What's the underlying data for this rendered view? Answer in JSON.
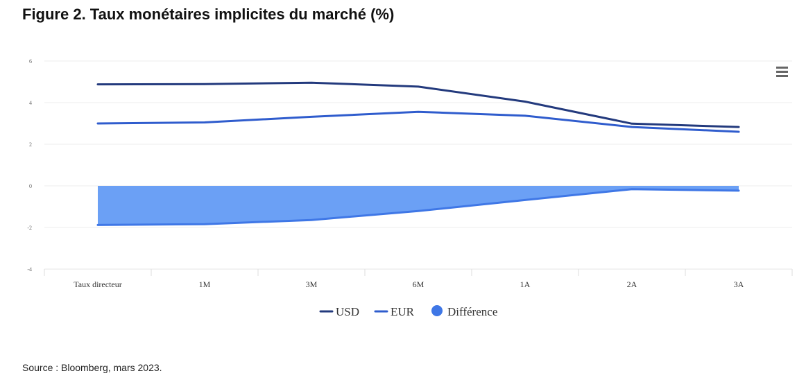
{
  "title": "Figure 2. Taux monétaires implicites du marché (%)",
  "source": "Source : Bloomberg, mars 2023.",
  "menu": {
    "icon": "hamburger-icon"
  },
  "chart_data": {
    "type": "line",
    "title": "Figure 2. Taux monétaires implicites du marché (%)",
    "xlabel": "",
    "ylabel": "",
    "categories": [
      "Taux directeur",
      "1M",
      "3M",
      "6M",
      "1A",
      "2A",
      "3A"
    ],
    "ylim": [
      -4,
      6
    ],
    "yticks": [
      -4,
      -2,
      0,
      2,
      4,
      6
    ],
    "grid": true,
    "legend_position": "bottom-center",
    "series": [
      {
        "name": "USD",
        "type": "line",
        "color": "#233a7d",
        "values": [
          4.88,
          4.89,
          4.96,
          4.77,
          4.05,
          2.99,
          2.83
        ]
      },
      {
        "name": "EUR",
        "type": "line",
        "color": "#2f5ccd",
        "values": [
          3.0,
          3.05,
          3.32,
          3.56,
          3.37,
          2.83,
          2.6
        ]
      },
      {
        "name": "Différence",
        "type": "area",
        "color": "#6ba0f5",
        "line_color": "#3f77e6",
        "values": [
          -1.88,
          -1.84,
          -1.64,
          -1.21,
          -0.68,
          -0.16,
          -0.23
        ]
      }
    ]
  }
}
